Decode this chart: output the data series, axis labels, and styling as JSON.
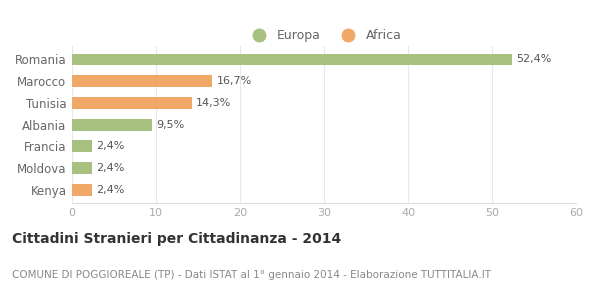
{
  "categories": [
    "Romania",
    "Marocco",
    "Tunisia",
    "Albania",
    "Francia",
    "Moldova",
    "Kenya"
  ],
  "values": [
    52.4,
    16.7,
    14.3,
    9.5,
    2.4,
    2.4,
    2.4
  ],
  "labels": [
    "52,4%",
    "16,7%",
    "14,3%",
    "9,5%",
    "2,4%",
    "2,4%",
    "2,4%"
  ],
  "colors": [
    "#a8c080",
    "#f0a868",
    "#f0a868",
    "#a8c080",
    "#a8c080",
    "#a8c080",
    "#f0a868"
  ],
  "europa_color": "#a8c080",
  "africa_color": "#f0a868",
  "xlim": [
    0,
    60
  ],
  "xticks": [
    0,
    10,
    20,
    30,
    40,
    50,
    60
  ],
  "title": "Cittadini Stranieri per Cittadinanza - 2014",
  "subtitle": "COMUNE DI POGGIOREALE (TP) - Dati ISTAT al 1° gennaio 2014 - Elaborazione TUTTITALIA.IT",
  "title_fontsize": 10,
  "subtitle_fontsize": 7.5,
  "background_color": "#ffffff",
  "bar_height": 0.55,
  "label_fontsize": 8,
  "ytick_fontsize": 8.5,
  "xtick_fontsize": 8,
  "label_color": "#555555",
  "ytick_color": "#666666",
  "xtick_color": "#aaaaaa"
}
